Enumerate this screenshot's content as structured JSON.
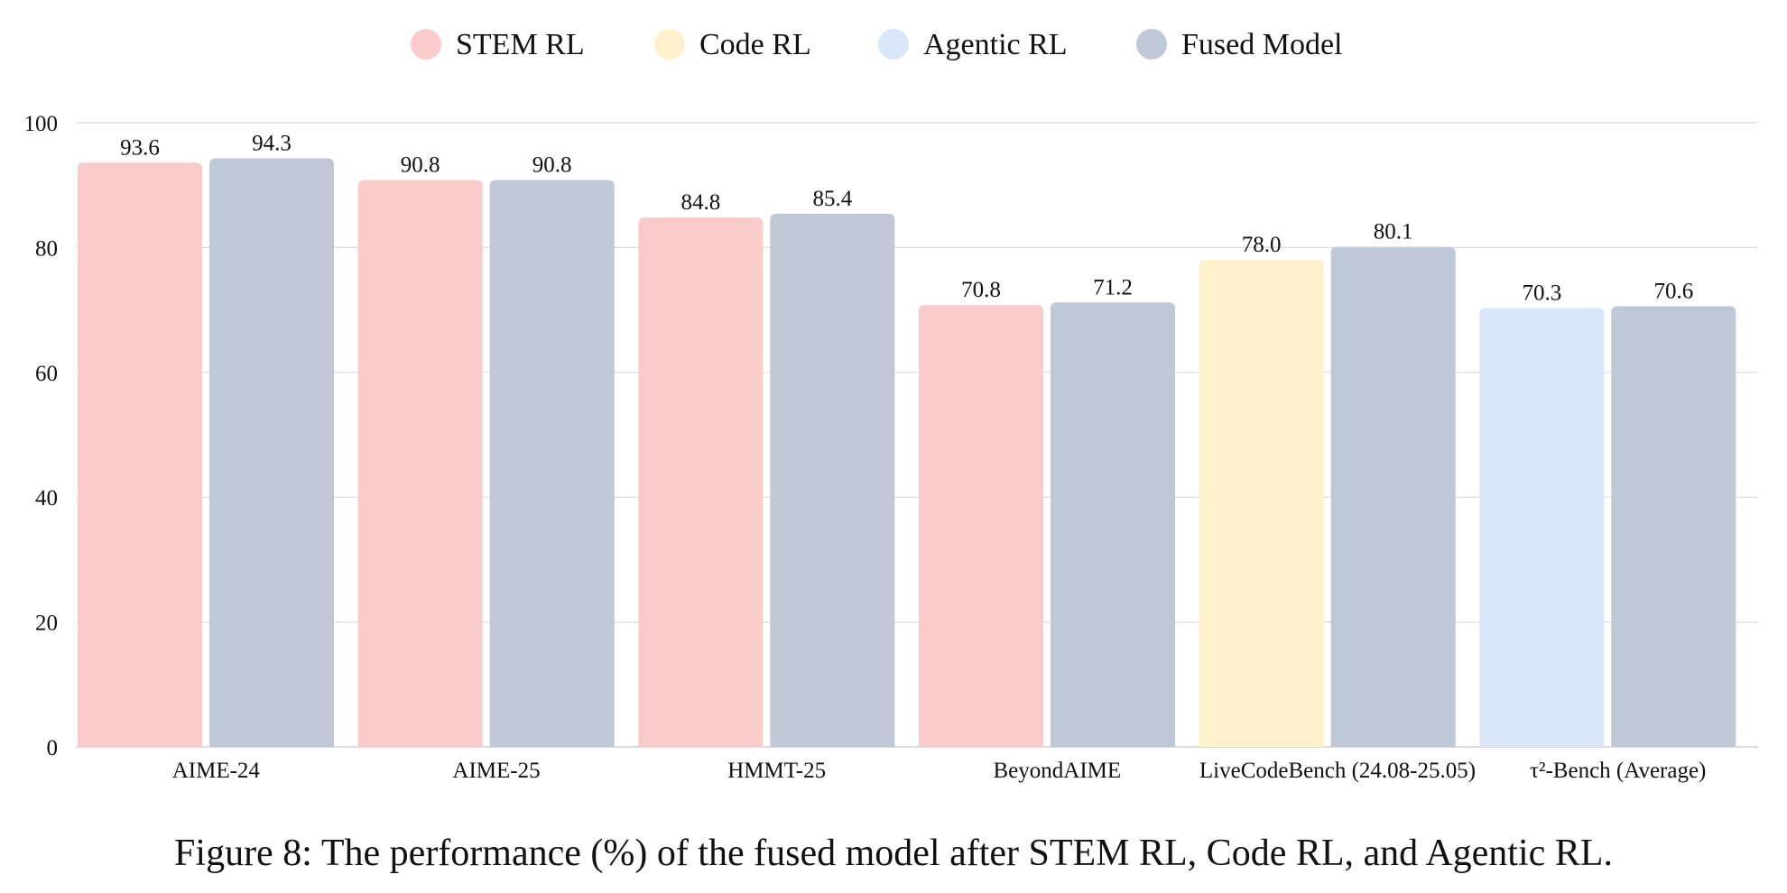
{
  "chart_data": {
    "type": "bar",
    "title": "",
    "xlabel": "",
    "ylabel": "",
    "ylim": [
      0,
      100
    ],
    "yticks": [
      0,
      20,
      40,
      60,
      80,
      100
    ],
    "grid": true,
    "legend_position": "top",
    "legend": [
      {
        "name": "STEM RL",
        "color": "#F9CBCB"
      },
      {
        "name": "Code RL",
        "color": "#FFF1CC"
      },
      {
        "name": "Agentic RL",
        "color": "#D9E6FA"
      },
      {
        "name": "Fused Model",
        "color": "#BEC8D7"
      }
    ],
    "categories": [
      "AIME-24",
      "AIME-25",
      "HMMT-25",
      "BeyondAIME",
      "LiveCodeBench (24.08-25.05)",
      "τ²-Bench (Average)"
    ],
    "groups": [
      {
        "category": "AIME-24",
        "bars": [
          {
            "series": "STEM RL",
            "value": 93.6,
            "label": "93.6"
          },
          {
            "series": "Fused Model",
            "value": 94.3,
            "label": "94.3"
          }
        ]
      },
      {
        "category": "AIME-25",
        "bars": [
          {
            "series": "STEM RL",
            "value": 90.8,
            "label": "90.8"
          },
          {
            "series": "Fused Model",
            "value": 90.8,
            "label": "90.8"
          }
        ]
      },
      {
        "category": "HMMT-25",
        "bars": [
          {
            "series": "STEM RL",
            "value": 84.8,
            "label": "84.8"
          },
          {
            "series": "Fused Model",
            "value": 85.4,
            "label": "85.4"
          }
        ]
      },
      {
        "category": "BeyondAIME",
        "bars": [
          {
            "series": "STEM RL",
            "value": 70.8,
            "label": "70.8"
          },
          {
            "series": "Fused Model",
            "value": 71.2,
            "label": "71.2"
          }
        ]
      },
      {
        "category": "LiveCodeBench (24.08-25.05)",
        "bars": [
          {
            "series": "Code RL",
            "value": 78.0,
            "label": "78.0"
          },
          {
            "series": "Fused Model",
            "value": 80.1,
            "label": "80.1"
          }
        ]
      },
      {
        "category": "τ²-Bench (Average)",
        "bars": [
          {
            "series": "Agentic RL",
            "value": 70.3,
            "label": "70.3"
          },
          {
            "series": "Fused Model",
            "value": 70.6,
            "label": "70.6"
          }
        ]
      }
    ]
  },
  "caption": {
    "figure_number": "Figure 8:",
    "text": "The performance (%) of the fused model after STEM RL, Code RL, and Agentic RL."
  }
}
